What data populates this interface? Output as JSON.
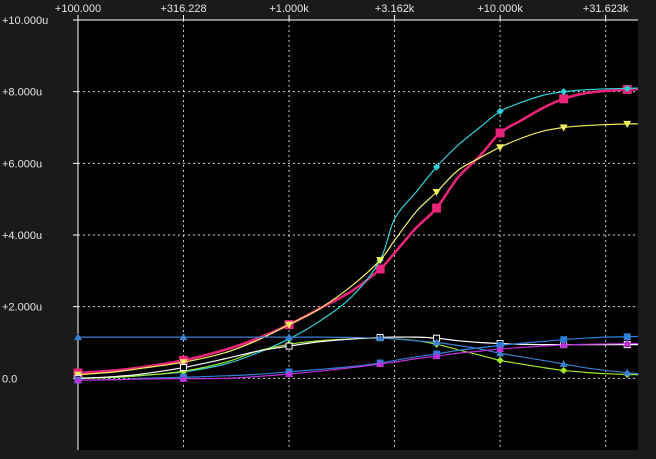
{
  "chart_data": {
    "type": "line",
    "x_scale": "log",
    "x_ticks": [
      100,
      316.228,
      1000,
      3162,
      10000,
      31623
    ],
    "x_tick_labels": [
      "+100.000",
      "+316.228",
      "+1.000k",
      "+3.162k",
      "+10.000k",
      "+31.623k"
    ],
    "xlim": [
      100,
      45000
    ],
    "y_ticks": [
      0,
      2,
      4,
      6,
      8,
      10
    ],
    "y_tick_labels": [
      "0.0",
      "+2.000u",
      "+4.000u",
      "+6.000u",
      "+8.000u",
      "+10.000u"
    ],
    "ylim": [
      -2,
      10
    ],
    "grid": true,
    "colors": {
      "background": "#1a1a1a",
      "plot_background": "#000000",
      "grid": "#d0d0d0",
      "axis": "#ffffff"
    },
    "series": [
      {
        "color": "#e8247a",
        "marker": "square",
        "width": 2.6,
        "x": [
          100,
          150,
          200,
          316,
          500,
          700,
          1000,
          1400,
          2000,
          2700,
          3162,
          4000,
          5000,
          6300,
          8000,
          10000,
          12600,
          16000,
          20000,
          25000,
          31623,
          40000,
          45000
        ],
        "y": [
          0.15,
          0.22,
          0.31,
          0.5,
          0.8,
          1.1,
          1.5,
          1.95,
          2.45,
          3.05,
          3.5,
          4.2,
          4.75,
          5.6,
          6.2,
          6.85,
          7.2,
          7.55,
          7.8,
          7.95,
          8.02,
          8.06,
          8.07
        ]
      },
      {
        "color": "#2ecfd8",
        "marker": "diamond",
        "width": 1.2,
        "x": [
          100,
          150,
          200,
          316,
          500,
          700,
          1000,
          1400,
          2000,
          2700,
          3162,
          4000,
          5000,
          6300,
          8000,
          10000,
          12600,
          16000,
          20000,
          25000,
          31623,
          40000,
          45000
        ],
        "y": [
          0.0,
          0.03,
          0.08,
          0.18,
          0.4,
          0.7,
          1.1,
          1.6,
          2.3,
          3.3,
          4.45,
          5.2,
          5.9,
          6.5,
          7.0,
          7.45,
          7.7,
          7.9,
          8.0,
          8.05,
          8.08,
          8.09,
          8.1
        ]
      },
      {
        "color": "#f0f060",
        "marker": "triangle-down",
        "width": 1.2,
        "x": [
          100,
          150,
          200,
          316,
          500,
          700,
          1000,
          1400,
          2000,
          2700,
          3162,
          4000,
          5000,
          6300,
          8000,
          10000,
          12600,
          16000,
          20000,
          25000,
          31623,
          40000,
          45000
        ],
        "y": [
          0.1,
          0.18,
          0.28,
          0.45,
          0.72,
          1.05,
          1.5,
          1.95,
          2.6,
          3.3,
          3.85,
          4.65,
          5.2,
          5.8,
          6.15,
          6.45,
          6.7,
          6.9,
          7.0,
          7.05,
          7.08,
          7.1,
          7.1
        ]
      },
      {
        "color": "#9fe82a",
        "marker": "diamond",
        "width": 1.2,
        "x": [
          100,
          150,
          200,
          316,
          500,
          700,
          1000,
          1400,
          2000,
          2700,
          3162,
          4000,
          5000,
          6300,
          8000,
          10000,
          12600,
          16000,
          20000,
          25000,
          31623,
          40000,
          45000
        ],
        "y": [
          0.0,
          0.03,
          0.08,
          0.2,
          0.45,
          0.75,
          0.95,
          1.05,
          1.1,
          1.12,
          1.1,
          1.05,
          0.95,
          0.8,
          0.65,
          0.5,
          0.4,
          0.3,
          0.22,
          0.17,
          0.13,
          0.11,
          0.1
        ]
      },
      {
        "color": "#ffffff",
        "marker": "square-open",
        "width": 1.2,
        "x": [
          100,
          150,
          200,
          316,
          500,
          700,
          1000,
          1400,
          2000,
          2700,
          3162,
          4000,
          5000,
          6300,
          8000,
          10000,
          12600,
          16000,
          20000,
          25000,
          31623,
          40000,
          45000
        ],
        "y": [
          0.0,
          0.05,
          0.12,
          0.3,
          0.55,
          0.75,
          0.9,
          1.02,
          1.1,
          1.14,
          1.15,
          1.15,
          1.12,
          1.05,
          1.0,
          0.97,
          0.95,
          0.94,
          0.94,
          0.94,
          0.94,
          0.94,
          0.94
        ]
      },
      {
        "color": "#3a7fd0",
        "marker": "triangle",
        "width": 1.2,
        "x": [
          100,
          150,
          200,
          316,
          500,
          700,
          1000,
          1400,
          2000,
          2700,
          3162,
          4000,
          5000,
          6300,
          8000,
          10000,
          12600,
          16000,
          20000,
          25000,
          31623,
          40000,
          45000
        ],
        "y": [
          1.15,
          1.15,
          1.15,
          1.15,
          1.15,
          1.15,
          1.15,
          1.15,
          1.14,
          1.12,
          1.1,
          1.05,
          1.0,
          0.92,
          0.82,
          0.7,
          0.6,
          0.5,
          0.4,
          0.3,
          0.22,
          0.16,
          0.13
        ]
      },
      {
        "color": "#2f7fd8",
        "marker": "square",
        "width": 1.2,
        "x": [
          100,
          150,
          200,
          316,
          500,
          700,
          1000,
          1400,
          2000,
          2700,
          3162,
          4000,
          5000,
          6300,
          8000,
          10000,
          12600,
          16000,
          20000,
          25000,
          31623,
          40000,
          45000
        ],
        "y": [
          -0.05,
          -0.04,
          0.0,
          0.03,
          0.07,
          0.11,
          0.18,
          0.25,
          0.33,
          0.43,
          0.5,
          0.6,
          0.68,
          0.78,
          0.85,
          0.92,
          0.98,
          1.03,
          1.08,
          1.12,
          1.15,
          1.16,
          1.17
        ]
      },
      {
        "color": "#c030d8",
        "marker": "triangle",
        "width": 1.2,
        "x": [
          100,
          150,
          200,
          316,
          500,
          700,
          1000,
          1400,
          2000,
          2700,
          3162,
          4000,
          5000,
          6300,
          8000,
          10000,
          12600,
          16000,
          20000,
          25000,
          31623,
          40000,
          45000
        ],
        "y": [
          -0.05,
          -0.04,
          -0.02,
          -0.01,
          0.0,
          0.05,
          0.12,
          0.2,
          0.3,
          0.4,
          0.45,
          0.55,
          0.62,
          0.7,
          0.76,
          0.82,
          0.86,
          0.9,
          0.93,
          0.95,
          0.96,
          0.97,
          0.97
        ]
      }
    ]
  }
}
